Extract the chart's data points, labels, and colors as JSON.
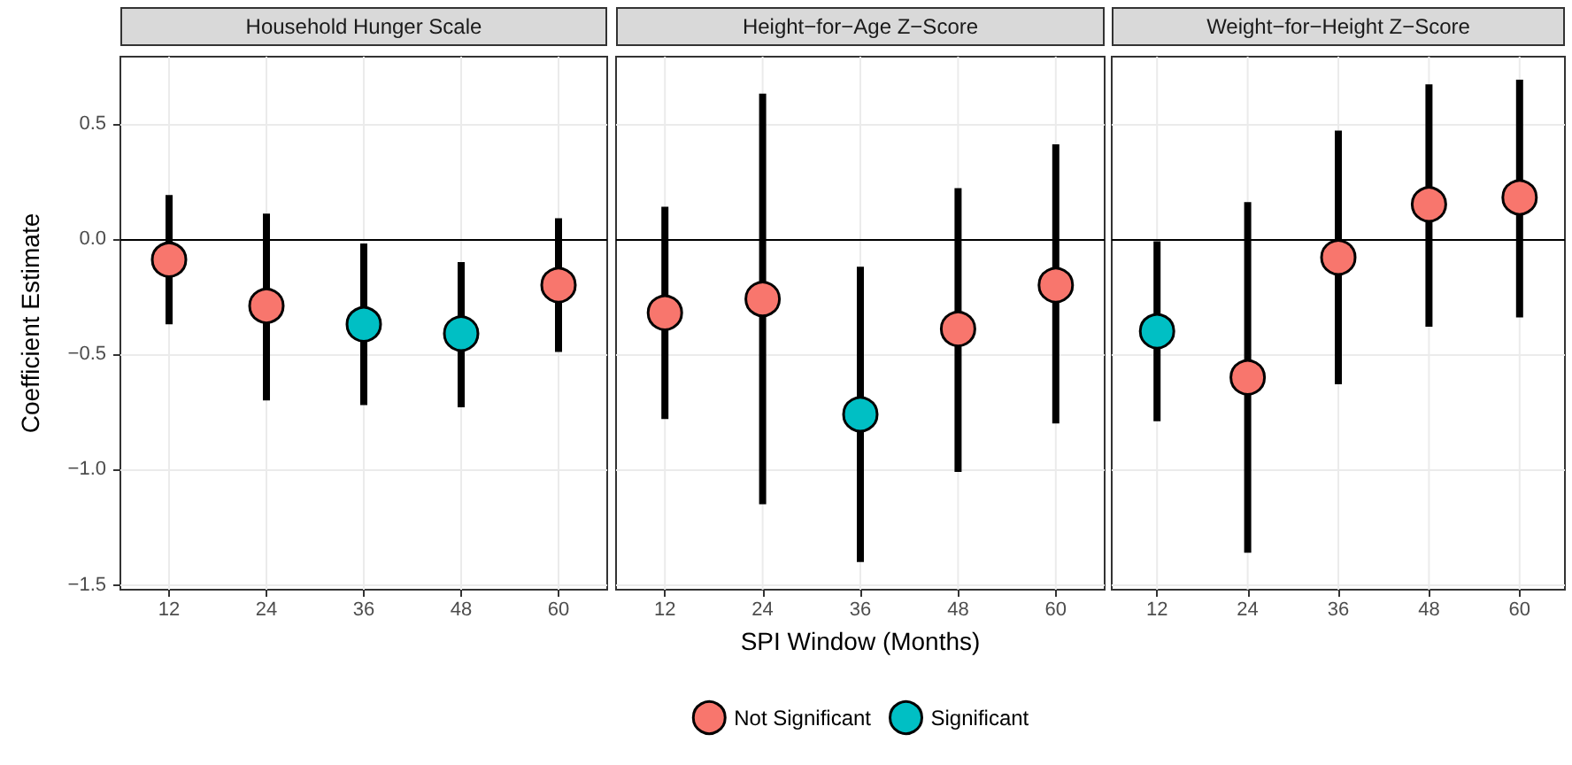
{
  "chart_data": [
    {
      "type": "scatter",
      "title": "Household Hunger Scale",
      "ylabel": "Coefficient Estimate",
      "categories": [
        "12",
        "24",
        "36",
        "48",
        "60"
      ],
      "ylim": [
        -1.52,
        0.79
      ],
      "yticks": [
        {
          "value": -1.5,
          "label": "−1.5"
        },
        {
          "value": -1,
          "label": "−1.0"
        },
        {
          "value": -0.5,
          "label": "−0.5"
        },
        {
          "value": 0,
          "label": "0.0"
        },
        {
          "value": 0.5,
          "label": "0.5"
        }
      ],
      "grid": true,
      "marker": "circle",
      "ref_lines": [
        {
          "axis": "y",
          "value": 0
        }
      ],
      "series": [
        {
          "color": "#f8766d",
          "values": [
            -0.09,
            -0.29,
            null,
            null,
            -0.2
          ],
          "errors": [
            [
              -0.37,
              0.19
            ],
            [
              -0.7,
              0.11
            ],
            null,
            null,
            [
              -0.49,
              0.09
            ]
          ]
        },
        {
          "color": "#00bfc4",
          "values": [
            null,
            null,
            -0.37,
            -0.41,
            null
          ],
          "errors": [
            null,
            null,
            [
              -0.72,
              -0.02
            ],
            [
              -0.73,
              -0.1
            ],
            null
          ]
        }
      ]
    },
    {
      "type": "scatter",
      "title": "Height−for−Age Z−Score",
      "xlabel": "SPI Window (Months)",
      "categories": [
        "12",
        "24",
        "36",
        "48",
        "60"
      ],
      "ylim": [
        -1.52,
        0.79
      ],
      "tick_labels": "x",
      "grid": true,
      "marker": "circle",
      "legend": "bottom",
      "ref_lines": [
        {
          "axis": "y",
          "value": 0
        }
      ],
      "series": [
        {
          "name": "Not Significant",
          "color": "#f8766d",
          "values": [
            -0.32,
            -0.26,
            null,
            -0.39,
            -0.2
          ],
          "errors": [
            [
              -0.78,
              0.14
            ],
            [
              -1.15,
              0.63
            ],
            null,
            [
              -1.01,
              0.22
            ],
            [
              -0.8,
              0.41
            ]
          ]
        },
        {
          "name": "Significant",
          "color": "#00bfc4",
          "values": [
            null,
            null,
            -0.76,
            null,
            null
          ],
          "errors": [
            null,
            null,
            [
              -1.4,
              -0.12
            ],
            null,
            null
          ]
        }
      ]
    },
    {
      "type": "scatter",
      "title": "Weight−for−Height Z−Score",
      "categories": [
        "12",
        "24",
        "36",
        "48",
        "60"
      ],
      "ylim": [
        -1.52,
        0.79
      ],
      "tick_labels": "x",
      "grid": true,
      "marker": "circle",
      "ref_lines": [
        {
          "axis": "y",
          "value": 0
        }
      ],
      "series": [
        {
          "color": "#f8766d",
          "values": [
            null,
            -0.6,
            -0.08,
            0.15,
            0.18
          ],
          "errors": [
            null,
            [
              -1.36,
              0.16
            ],
            [
              -0.63,
              0.47
            ],
            [
              -0.38,
              0.67
            ],
            [
              -0.34,
              0.69
            ]
          ]
        },
        {
          "color": "#00bfc4",
          "values": [
            -0.4,
            null,
            null,
            null,
            null
          ],
          "errors": [
            [
              -0.79,
              -0.01
            ],
            null,
            null,
            null,
            null
          ]
        }
      ]
    }
  ]
}
